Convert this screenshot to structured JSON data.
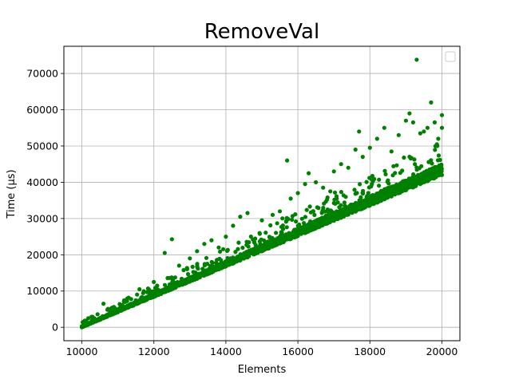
{
  "chart_data": {
    "type": "scatter",
    "title": "RemoveVal",
    "xlabel": "Elements",
    "ylabel": "Time (µs)",
    "xlim": [
      9500,
      20500
    ],
    "ylim": [
      -3700,
      77500
    ],
    "xticks": [
      10000,
      12000,
      14000,
      16000,
      18000,
      20000
    ],
    "yticks": [
      0,
      10000,
      20000,
      30000,
      40000,
      50000,
      60000,
      70000
    ],
    "xtick_labels": [
      "10000",
      "12000",
      "14000",
      "16000",
      "18000",
      "20000"
    ],
    "ytick_labels": [
      "0",
      "10000",
      "20000",
      "30000",
      "40000",
      "50000",
      "60000",
      "70000"
    ],
    "grid": true,
    "legend": "top-right (empty)",
    "series": [
      {
        "color": "#008000",
        "marker": "circle",
        "trend": {
          "x_start": 10000,
          "y_start": 0,
          "x_end": 20000,
          "y_end": 42000
        },
        "points": [
          [
            10000,
            0
          ],
          [
            10020,
            150
          ],
          [
            10050,
            300
          ],
          [
            10100,
            500
          ],
          [
            10150,
            700
          ],
          [
            10200,
            900
          ],
          [
            10300,
            1300
          ],
          [
            10400,
            1700
          ],
          [
            10500,
            2100
          ],
          [
            10600,
            2500
          ],
          [
            10700,
            2900
          ],
          [
            10800,
            3400
          ],
          [
            10900,
            3800
          ],
          [
            11000,
            4200
          ],
          [
            11200,
            5100
          ],
          [
            11400,
            5900
          ],
          [
            11600,
            6800
          ],
          [
            11800,
            7600
          ],
          [
            12000,
            8400
          ],
          [
            12200,
            9200
          ],
          [
            12400,
            10100
          ],
          [
            12600,
            10900
          ],
          [
            12800,
            11800
          ],
          [
            13000,
            12600
          ],
          [
            13200,
            13400
          ],
          [
            13400,
            14300
          ],
          [
            13600,
            15100
          ],
          [
            13800,
            16000
          ],
          [
            14000,
            16800
          ],
          [
            14200,
            17600
          ],
          [
            14400,
            18500
          ],
          [
            14600,
            19300
          ],
          [
            14800,
            20200
          ],
          [
            15000,
            21000
          ],
          [
            15200,
            21800
          ],
          [
            15400,
            22700
          ],
          [
            15600,
            23500
          ],
          [
            15800,
            24400
          ],
          [
            16000,
            25200
          ],
          [
            16200,
            26000
          ],
          [
            16400,
            26900
          ],
          [
            16600,
            27700
          ],
          [
            16800,
            28600
          ],
          [
            17000,
            29400
          ],
          [
            17200,
            30200
          ],
          [
            17400,
            31100
          ],
          [
            17600,
            31900
          ],
          [
            17800,
            32800
          ],
          [
            18000,
            33600
          ],
          [
            18200,
            34400
          ],
          [
            18400,
            35300
          ],
          [
            18600,
            36100
          ],
          [
            18800,
            37000
          ],
          [
            19000,
            37800
          ],
          [
            19200,
            38600
          ],
          [
            19400,
            39500
          ],
          [
            19600,
            40300
          ],
          [
            19800,
            41200
          ],
          [
            20000,
            42000
          ],
          [
            10600,
            6500
          ],
          [
            11200,
            7000
          ],
          [
            11600,
            10500
          ],
          [
            12000,
            12500
          ],
          [
            12300,
            20500
          ],
          [
            12500,
            24300
          ],
          [
            12700,
            17000
          ],
          [
            13000,
            19000
          ],
          [
            13200,
            21000
          ],
          [
            13400,
            23000
          ],
          [
            13600,
            24000
          ],
          [
            13800,
            22000
          ],
          [
            14000,
            25000
          ],
          [
            14200,
            28000
          ],
          [
            14400,
            30500
          ],
          [
            14600,
            31500
          ],
          [
            15000,
            29500
          ],
          [
            15300,
            31000
          ],
          [
            15500,
            32000
          ],
          [
            15700,
            46000
          ],
          [
            15800,
            35500
          ],
          [
            16000,
            37000
          ],
          [
            16200,
            39500
          ],
          [
            16300,
            42500
          ],
          [
            16500,
            40000
          ],
          [
            16700,
            38500
          ],
          [
            16900,
            37500
          ],
          [
            17000,
            43000
          ],
          [
            17200,
            45000
          ],
          [
            17400,
            44000
          ],
          [
            17600,
            49000
          ],
          [
            17700,
            54000
          ],
          [
            17800,
            47000
          ],
          [
            18000,
            49500
          ],
          [
            18200,
            52000
          ],
          [
            18400,
            55000
          ],
          [
            18600,
            48500
          ],
          [
            18800,
            53000
          ],
          [
            19000,
            57000
          ],
          [
            19100,
            59000
          ],
          [
            19200,
            56500
          ],
          [
            19300,
            73800
          ],
          [
            19400,
            53500
          ],
          [
            19500,
            54000
          ],
          [
            19600,
            55000
          ],
          [
            19700,
            62000
          ],
          [
            19800,
            56500
          ],
          [
            19900,
            52000
          ],
          [
            20000,
            58500
          ],
          [
            20000,
            55000
          ]
        ]
      }
    ]
  }
}
